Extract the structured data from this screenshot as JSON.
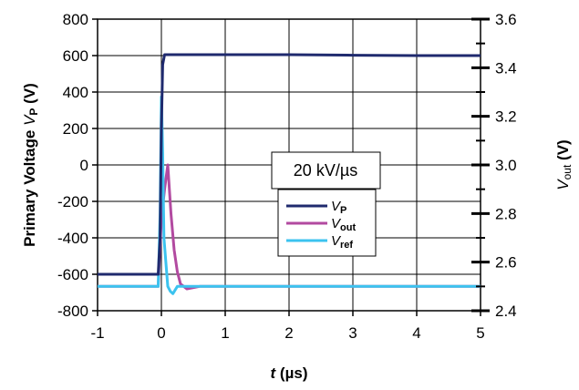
{
  "chart_data": {
    "type": "line",
    "xlabel_italic": "t",
    "xlabel_unit": "(µs)",
    "ylabel_left_text": "Primary Voltage ",
    "ylabel_left_italic": "V",
    "ylabel_left_sub": "P",
    "ylabel_left_unit": " (V)",
    "ylabel_right_italic": "V",
    "ylabel_right_sub": "out",
    "ylabel_right_unit": "(V)",
    "xlim": [
      -1,
      5
    ],
    "ylim_left": [
      -800,
      800
    ],
    "ylim_right": [
      2.4,
      3.6
    ],
    "x_ticks": [
      "-1",
      "0",
      "1",
      "2",
      "3",
      "4",
      "5"
    ],
    "y_left_ticks": [
      "800",
      "600",
      "400",
      "200",
      "0",
      "-200",
      "-400",
      "-600",
      "-800"
    ],
    "y_right_ticks": [
      "3.6",
      "3.4",
      "3.2",
      "3.0",
      "2.8",
      "2.6",
      "2.4"
    ],
    "grid": "both",
    "legend_placement": "center-right",
    "annotation": "20 kV/µs",
    "series": [
      {
        "name": "V",
        "name_sub": "P",
        "color": "#1f2a6e",
        "axis": "left",
        "x": [
          -1,
          -0.05,
          -0.02,
          0.0,
          0.02,
          0.05,
          1,
          2,
          3,
          4,
          5
        ],
        "y": [
          -600,
          -600,
          -400,
          200,
          550,
          605,
          605,
          605,
          602,
          600,
          600
        ]
      },
      {
        "name": "V",
        "name_sub": "out",
        "color": "#b24aa0",
        "axis": "right",
        "x": [
          -1,
          -0.3,
          -0.05,
          0.0,
          0.05,
          0.1,
          0.15,
          0.2,
          0.25,
          0.3,
          0.4,
          0.6,
          1,
          2,
          3,
          4,
          5
        ],
        "y": [
          2.5,
          2.5,
          2.5,
          2.78,
          2.9,
          3.0,
          2.8,
          2.65,
          2.56,
          2.51,
          2.49,
          2.5,
          2.5,
          2.5,
          2.5,
          2.5,
          2.5
        ]
      },
      {
        "name": "V",
        "name_sub": "ref",
        "color": "#3cc3ef",
        "axis": "right",
        "x": [
          -1,
          -0.05,
          -0.02,
          0.0,
          0.02,
          0.04,
          0.07,
          0.1,
          0.14,
          0.18,
          0.25,
          0.4,
          0.7,
          1,
          2,
          3,
          4,
          5
        ],
        "y": [
          2.5,
          2.5,
          2.8,
          3.28,
          3.05,
          2.7,
          2.6,
          2.5,
          2.48,
          2.47,
          2.5,
          2.5,
          2.5,
          2.5,
          2.5,
          2.5,
          2.5,
          2.5
        ]
      }
    ]
  }
}
